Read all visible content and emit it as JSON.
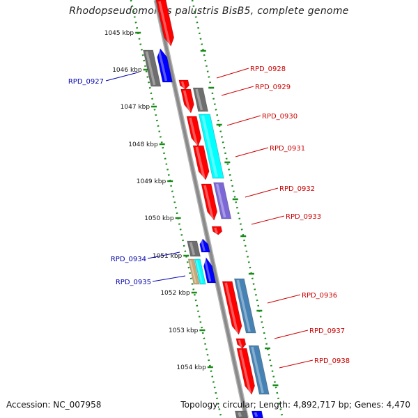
{
  "header": {
    "title": "Rhodopseudomonas palustris BisB5, complete genome"
  },
  "footer": {
    "accession": "Accession: NC_007958",
    "topology": "Topology: circular; Length: 4,892,717 bp; Genes: 4,470"
  },
  "colors": {
    "backbone": "#8a8a8a",
    "scale_ticks": "#1a8a1a",
    "label_left": "#0000aa",
    "label_right": "#cc0000",
    "gene_red": "#ff0000",
    "gene_gray": "#6e6e6e",
    "gene_blue": "#0000ff",
    "gene_cyan": "#00ffff",
    "gene_purple": "#7b68d6",
    "gene_steelblue": "#4682b4",
    "gene_tan": "#c8aa78"
  },
  "scale": {
    "labels": [
      "1045 kbp",
      "1046 kbp",
      "1047 kbp",
      "1048 kbp",
      "1049 kbp",
      "1050 kbp",
      "1051 kbp",
      "1052 kbp",
      "1053 kbp",
      "1054 kbp"
    ]
  },
  "gene_labels": [
    {
      "id": "g0927",
      "text": "RPD_0927",
      "side": "left"
    },
    {
      "id": "g0928",
      "text": "RPD_0928",
      "side": "right"
    },
    {
      "id": "g0929",
      "text": "RPD_0929",
      "side": "right"
    },
    {
      "id": "g0930",
      "text": "RPD_0930",
      "side": "right"
    },
    {
      "id": "g0931",
      "text": "RPD_0931",
      "side": "right"
    },
    {
      "id": "g0932",
      "text": "RPD_0932",
      "side": "right"
    },
    {
      "id": "g0933",
      "text": "RPD_0933",
      "side": "right"
    },
    {
      "id": "g0934",
      "text": "RPD_0934",
      "side": "left"
    },
    {
      "id": "g0935",
      "text": "RPD_0935",
      "side": "left"
    },
    {
      "id": "g0936",
      "text": "RPD_0936",
      "side": "right"
    },
    {
      "id": "g0937",
      "text": "RPD_0937",
      "side": "right"
    },
    {
      "id": "g0938",
      "text": "RPD_0938",
      "side": "right"
    }
  ]
}
